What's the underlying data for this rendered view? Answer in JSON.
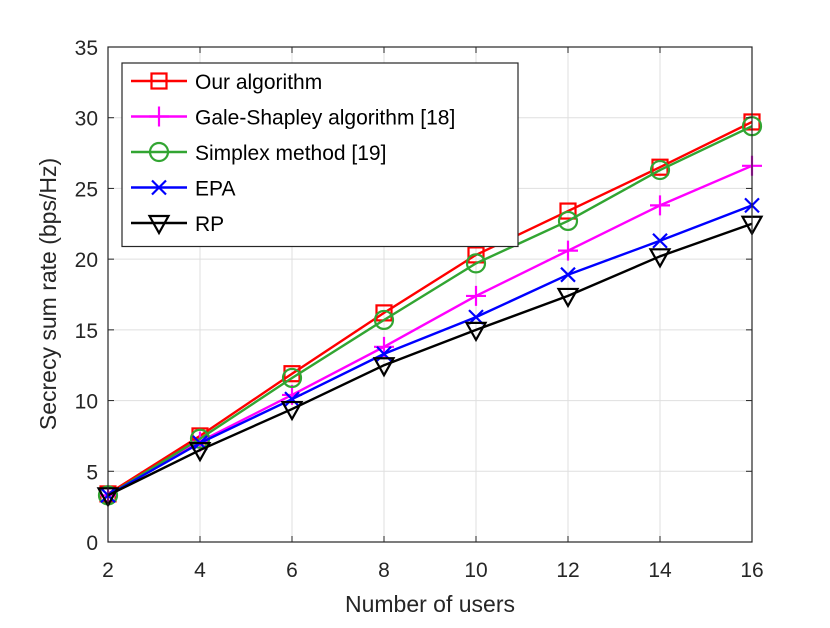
{
  "chart_data": {
    "type": "line",
    "title": "",
    "xlabel": "Number of users",
    "ylabel": "Secrecy sum rate (bps/Hz)",
    "xlim": [
      2,
      16
    ],
    "ylim": [
      0,
      35
    ],
    "grid": true,
    "x": [
      2,
      4,
      6,
      8,
      10,
      12,
      14,
      16
    ],
    "x_ticks": [
      "2",
      "4",
      "6",
      "8",
      "10",
      "12",
      "14",
      "16"
    ],
    "y_ticks": [
      "0",
      "5",
      "10",
      "15",
      "20",
      "25",
      "30",
      "35"
    ],
    "legend_position": "top-left",
    "series": [
      {
        "name": "Our algorithm",
        "color": "#ff0000",
        "marker": "square",
        "values": [
          3.4,
          7.5,
          11.9,
          16.2,
          20.3,
          23.4,
          26.5,
          29.7
        ]
      },
      {
        "name": "Gale-Shapley algorithm [18]",
        "color": "#ff00ff",
        "marker": "plus",
        "values": [
          3.3,
          7.1,
          10.4,
          13.8,
          17.4,
          20.6,
          23.8,
          26.6
        ]
      },
      {
        "name": "Simplex method [19]",
        "color": "#32a532",
        "marker": "circle",
        "values": [
          3.3,
          7.3,
          11.6,
          15.7,
          19.7,
          22.7,
          26.3,
          29.4
        ]
      },
      {
        "name": "EPA",
        "color": "#0000ff",
        "marker": "x",
        "values": [
          3.3,
          7.0,
          10.1,
          13.3,
          15.9,
          18.9,
          21.3,
          23.8
        ]
      },
      {
        "name": "RP",
        "color": "#000000",
        "marker": "triangle-down",
        "values": [
          3.3,
          6.5,
          9.4,
          12.5,
          15.0,
          17.4,
          20.2,
          22.5
        ]
      }
    ]
  }
}
